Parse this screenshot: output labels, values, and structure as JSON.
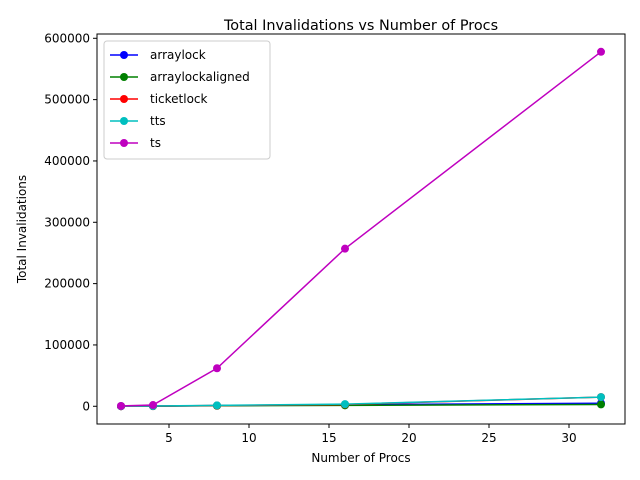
{
  "chart_data": {
    "type": "line",
    "title": "Total Invalidations vs Number of Procs",
    "xlabel": "Number of Procs",
    "ylabel": "Total Invalidations",
    "x": [
      2,
      4,
      8,
      16,
      32
    ],
    "xlim": [
      0.5,
      33.5
    ],
    "ylim": [
      -28900,
      607000
    ],
    "xticks": [
      5,
      10,
      15,
      20,
      25,
      30
    ],
    "yticks": [
      0,
      100000,
      200000,
      300000,
      400000,
      500000,
      600000
    ],
    "grid": false,
    "legend_position": "upper-left",
    "series": [
      {
        "name": "arraylock",
        "color": "#0000ff",
        "values": [
          100,
          300,
          1000,
          2500,
          5000
        ]
      },
      {
        "name": "arraylockaligned",
        "color": "#008000",
        "values": [
          100,
          200,
          800,
          1500,
          3000
        ]
      },
      {
        "name": "ticketlock",
        "color": "#ff0000",
        "values": [
          100,
          300,
          1200,
          3000,
          15000
        ]
      },
      {
        "name": "tts",
        "color": "#00bfbf",
        "values": [
          200,
          400,
          1500,
          3500,
          15000
        ]
      },
      {
        "name": "ts",
        "color": "#bf00bf",
        "values": [
          500,
          2000,
          62000,
          257000,
          578000
        ]
      }
    ]
  }
}
